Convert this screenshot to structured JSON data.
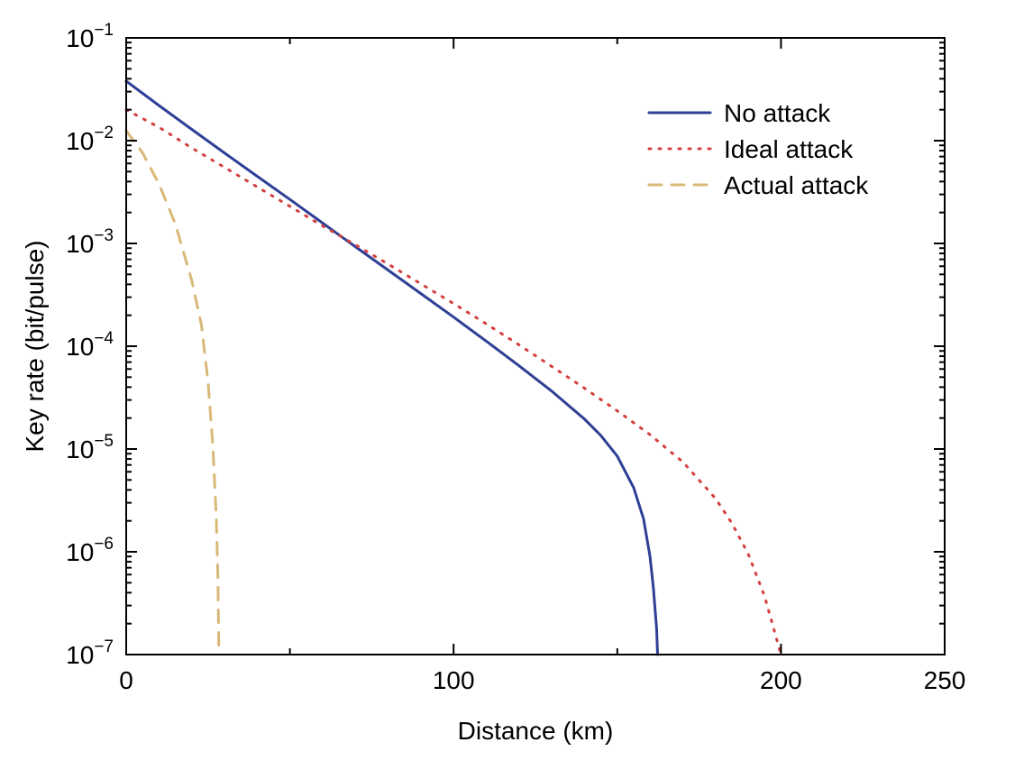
{
  "chart_data": {
    "type": "line",
    "title": "",
    "xlabel": "Distance (km)",
    "ylabel": "Key rate (bit/pulse)",
    "xlim": [
      0,
      250
    ],
    "ylim": [
      1e-07,
      0.1
    ],
    "yscale": "log",
    "grid": false,
    "legend_position": "top-right",
    "x_ticks": [
      {
        "value": 0,
        "label": "0"
      },
      {
        "value": 100,
        "label": "100"
      },
      {
        "value": 200,
        "label": "200"
      },
      {
        "value": 250,
        "label": "250"
      }
    ],
    "y_ticks": [
      {
        "value": 0.1,
        "base": "10",
        "exp": "−1"
      },
      {
        "value": 0.01,
        "base": "10",
        "exp": "−2"
      },
      {
        "value": 0.001,
        "base": "10",
        "exp": "−3"
      },
      {
        "value": 0.0001,
        "base": "10",
        "exp": "−4"
      },
      {
        "value": 1e-05,
        "base": "10",
        "exp": "−5"
      },
      {
        "value": 1e-06,
        "base": "10",
        "exp": "−6"
      },
      {
        "value": 1e-07,
        "base": "10",
        "exp": "−7"
      }
    ],
    "series": [
      {
        "name": "No attack",
        "color": "#2e3f95",
        "style": "solid",
        "x": [
          0,
          10,
          20,
          30,
          40,
          50,
          60,
          70,
          80,
          90,
          100,
          110,
          120,
          130,
          140,
          145,
          150,
          155,
          158,
          160,
          161,
          162,
          162.3
        ],
        "y": [
          0.038,
          0.022,
          0.0129,
          0.0076,
          0.0045,
          0.00268,
          0.00158,
          0.00093,
          0.00055,
          0.000325,
          0.000192,
          0.000112,
          6.45e-05,
          3.65e-05,
          1.95e-05,
          1.35e-05,
          8.5e-06,
          4.2e-06,
          2.1e-06,
          9e-07,
          4.5e-07,
          1.8e-07,
          1e-07
        ]
      },
      {
        "name": "Ideal attack",
        "color": "#d43f3f",
        "style": "dotted",
        "x": [
          0,
          10,
          20,
          30,
          40,
          50,
          60,
          70,
          80,
          90,
          100,
          110,
          120,
          130,
          140,
          150,
          160,
          170,
          180,
          185,
          190,
          195,
          200
        ],
        "y": [
          0.02,
          0.0135,
          0.0085,
          0.0055,
          0.00355,
          0.0023,
          0.00148,
          0.00097,
          0.00063,
          0.000405,
          0.00026,
          0.000165,
          0.000103,
          6.35e-05,
          3.9e-05,
          2.35e-05,
          1.38e-05,
          7.5e-06,
          3.3e-06,
          1.9e-06,
          9.5e-07,
          3.7e-07,
          1e-07
        ]
      },
      {
        "name": "Actual attack",
        "color": "#d9b877",
        "style": "dashed",
        "x": [
          0,
          5,
          10,
          15,
          20,
          23,
          25,
          26.5,
          27.5,
          28,
          28.3
        ],
        "y": [
          0.0125,
          0.0076,
          0.0038,
          0.00155,
          0.00044,
          0.00016,
          4.5e-05,
          1.05e-05,
          2.2e-06,
          6e-07,
          1e-07
        ]
      }
    ]
  }
}
